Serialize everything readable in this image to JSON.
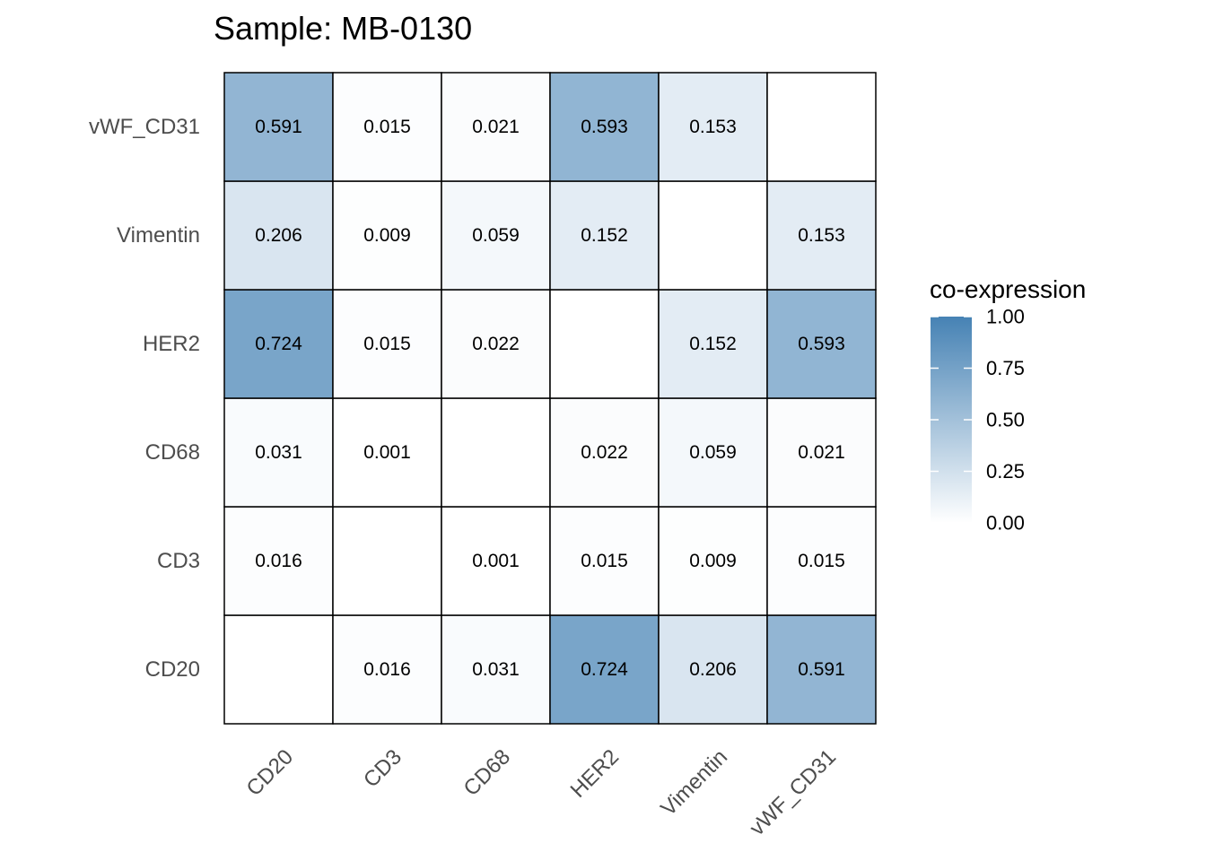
{
  "chart_data": {
    "type": "heatmap",
    "title": "Sample: MB-0130",
    "x_categories": [
      "CD20",
      "CD3",
      "CD68",
      "HER2",
      "Vimentin",
      "vWF_CD31"
    ],
    "y_categories": [
      "CD20",
      "CD3",
      "CD68",
      "HER2",
      "Vimentin",
      "vWF_CD31"
    ],
    "values": [
      [
        null,
        0.016,
        0.031,
        0.724,
        0.206,
        0.591
      ],
      [
        0.016,
        null,
        0.001,
        0.015,
        0.009,
        0.015
      ],
      [
        0.031,
        0.001,
        null,
        0.022,
        0.059,
        0.021
      ],
      [
        0.724,
        0.015,
        0.022,
        null,
        0.152,
        0.593
      ],
      [
        0.206,
        0.009,
        0.059,
        0.152,
        null,
        0.153
      ],
      [
        0.591,
        0.015,
        0.021,
        0.593,
        0.153,
        null
      ]
    ],
    "labels": [
      [
        null,
        "0.016",
        "0.031",
        "0.724",
        "0.206",
        "0.591"
      ],
      [
        "0.016",
        null,
        "0.001",
        "0.015",
        "0.009",
        "0.015"
      ],
      [
        "0.031",
        "0.001",
        null,
        "0.022",
        "0.059",
        "0.021"
      ],
      [
        "0.724",
        "0.015",
        "0.022",
        null,
        "0.152",
        "0.593"
      ],
      [
        "0.206",
        "0.009",
        "0.059",
        "0.152",
        null,
        "0.153"
      ],
      [
        "0.591",
        "0.015",
        "0.021",
        "0.593",
        "0.153",
        null
      ]
    ],
    "legend": {
      "title": "co-expression",
      "range": [
        0,
        1
      ],
      "ticks": [
        1.0,
        0.75,
        0.5,
        0.25,
        0.0
      ],
      "tick_labels": [
        "1.00",
        "0.75",
        "0.50",
        "0.25",
        "0.00"
      ],
      "color_low": "#ffffff",
      "color_high": "#4682b4",
      "position": "right"
    },
    "missing_color": "#ffffff"
  }
}
